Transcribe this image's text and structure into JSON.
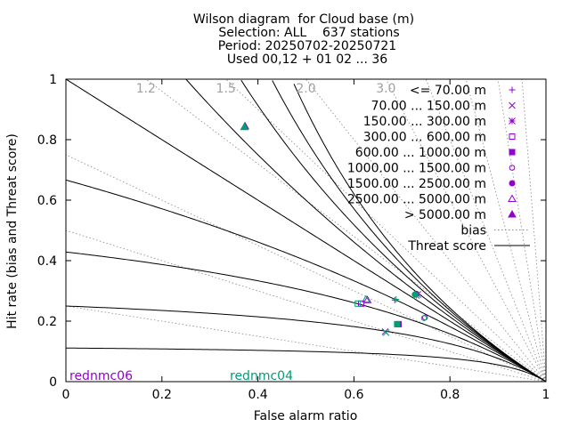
{
  "title": {
    "line1": "Wilson diagram  for Cloud base (m)",
    "line2": "Selection: ALL    637 stations",
    "line3": "Period: 20250702-20250721",
    "line4": "Used 00,12 + 01 02 ... 36"
  },
  "chart_data": {
    "type": "scatter",
    "xlabel": "False alarm ratio",
    "ylabel": "Hit rate (bias and Threat score)",
    "xlim": [
      0,
      1
    ],
    "ylim": [
      0,
      1
    ],
    "xticks": [
      "0",
      "0.2",
      "0.4",
      "0.6",
      "0.8",
      "1"
    ],
    "yticks": [
      "0",
      "0.2",
      "0.4",
      "0.6",
      "0.8",
      "1"
    ],
    "bias_labels": [
      "1.2",
      "1.5",
      "2.0",
      "3.0"
    ],
    "bias_values": [
      0.25,
      0.5,
      0.75,
      1.0,
      1.2,
      1.5,
      2.0,
      3.0,
      4.0,
      6.0,
      10.0,
      20.0
    ],
    "threat_values": [
      0.1,
      0.2,
      0.3,
      0.4,
      0.5,
      0.6,
      0.7,
      0.8,
      0.9
    ],
    "legend_position": "top-right",
    "legend": [
      {
        "label": "<= 70.00 m",
        "marker": "plus"
      },
      {
        "label": "70.00 ... 150.00 m",
        "marker": "cross"
      },
      {
        "label": "150.00 ... 300.00 m",
        "marker": "star"
      },
      {
        "label": "300.00 ... 600.00 m",
        "marker": "square-open"
      },
      {
        "label": "600.00 ... 1000.00 m",
        "marker": "square-filled"
      },
      {
        "label": "1000.00 ... 1500.00 m",
        "marker": "circle-open"
      },
      {
        "label": "1500.00 ... 2500.00 m",
        "marker": "circle-filled"
      },
      {
        "label": "2500.00 ... 5000.00 m",
        "marker": "triangle-open"
      },
      {
        "label": "> 5000.00 m",
        "marker": "triangle-filled"
      },
      {
        "label": "bias",
        "marker": "dotted-line"
      },
      {
        "label": "Threat score",
        "marker": "solid-line"
      }
    ],
    "series": [
      {
        "name": "rednmc06",
        "color": "#9400d3",
        "points": [
          {
            "class": "<= 70.00 m",
            "far": 0.685,
            "hr": 0.27
          },
          {
            "class": "70.00 ... 150.00 m",
            "far": 0.665,
            "hr": 0.165
          },
          {
            "class": "150.00 ... 300.00 m",
            "far": 0.733,
            "hr": 0.288
          },
          {
            "class": "300.00 ... 600.00 m",
            "far": 0.615,
            "hr": 0.258
          },
          {
            "class": "600.00 ... 1000.00 m",
            "far": 0.693,
            "hr": 0.19
          },
          {
            "class": "1000.00 ... 1500.00 m",
            "far": 0.748,
            "hr": 0.212
          },
          {
            "class": "1500.00 ... 2500.00 m",
            "far": 0.73,
            "hr": 0.29
          },
          {
            "class": "2500.00 ... 5000.00 m",
            "far": 0.628,
            "hr": 0.27
          },
          {
            "class": "> 5000.00 m",
            "far": 0.373,
            "hr": 0.845
          }
        ]
      },
      {
        "name": "rednmc04",
        "color": "#009e73",
        "points": [
          {
            "class": "<= 70.00 m",
            "far": 0.688,
            "hr": 0.272
          },
          {
            "class": "70.00 ... 150.00 m",
            "far": 0.667,
            "hr": 0.162
          },
          {
            "class": "150.00 ... 300.00 m",
            "far": 0.73,
            "hr": 0.285
          },
          {
            "class": "300.00 ... 600.00 m",
            "far": 0.608,
            "hr": 0.258
          },
          {
            "class": "600.00 ... 1000.00 m",
            "far": 0.69,
            "hr": 0.19
          },
          {
            "class": "1000.00 ... 1500.00 m",
            "far": 0.746,
            "hr": 0.21
          },
          {
            "class": "1500.00 ... 2500.00 m",
            "far": 0.727,
            "hr": 0.288
          },
          {
            "class": "2500.00 ... 5000.00 m",
            "far": 0.625,
            "hr": 0.272
          },
          {
            "class": "> 5000.00 m",
            "far": 0.372,
            "hr": 0.842
          }
        ]
      }
    ]
  }
}
